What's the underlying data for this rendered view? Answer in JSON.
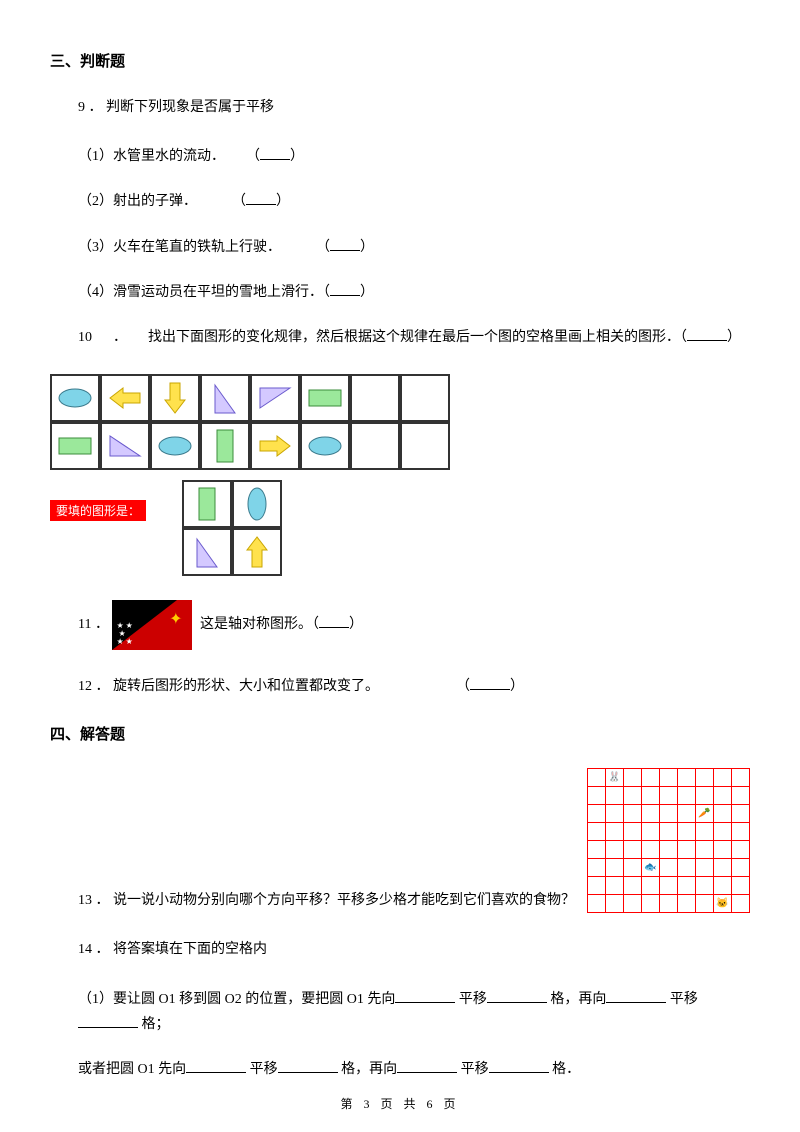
{
  "sections": {
    "s3": {
      "title": "三、判断题"
    },
    "s4": {
      "title": "四、解答题"
    }
  },
  "q9": {
    "number": "9 ．",
    "stem": "判断下列现象是否属于平移",
    "items": {
      "i1": "（1）水管里水的流动．",
      "i2": "（2）射出的子弹．",
      "i3": "（3）火车在笔直的铁轨上行驶．",
      "i4": "（4）滑雪运动员在平坦的雪地上滑行．（",
      "paren_open": "（",
      "paren_close": "）"
    }
  },
  "q10": {
    "number": "10",
    "sep": "．",
    "stem": "找出下面图形的变化规律，然后根据这个规律在最后一个图的空格里画上相关的图形．（",
    "paren_close": "）",
    "answer_label": "要填的图形是："
  },
  "q11": {
    "number": "11 ．",
    "stem": "这是轴对称图形。（",
    "paren_close": "）"
  },
  "q12": {
    "number": "12 ．",
    "stem": "旋转后图形的形状、大小和位置都改变了。",
    "paren_open": "（",
    "paren_close": "）"
  },
  "q13": {
    "number": "13 ．",
    "stem": "说一说小动物分别向哪个方向平移？平移多少格才能吃到它们喜欢的食物？"
  },
  "q14": {
    "number": "14 ．",
    "stem": "将答案填在下面的空格内",
    "sub1_a": "（1）要让圆 O1 移到圆 O2 的位置，要把圆 O1 先向",
    "sub1_b": "平移",
    "sub1_c": "格，再向",
    "sub1_d": "平移",
    "sub1_e": "格；",
    "sub2_a": "或者把圆 O1 先向",
    "sub2_b": "平移",
    "sub2_c": "格，再向",
    "sub2_d": "平移",
    "sub2_e": "格．"
  },
  "footer": {
    "text": "第 3 页 共 6 页"
  },
  "figure": {
    "type": "grid-pattern",
    "cell_border": "#333333",
    "shapes": {
      "ellipse": {
        "fill": "#7fd4e8",
        "stroke": "#3b7a8c"
      },
      "arrow": {
        "fill": "#ffe24d",
        "stroke": "#c9a500"
      },
      "rect": {
        "fill": "#9be89b",
        "stroke": "#3b8c3b"
      },
      "tri": {
        "fill": "#d4c9ff",
        "stroke": "#6a5acd"
      }
    }
  },
  "flag": {
    "bg_red": "#cc0000",
    "triangle": "#000000",
    "bird": "#ffcc00",
    "stars": "#ffffff"
  },
  "red_grid": {
    "border_color": "#ff0000",
    "rows": 8,
    "cols": 9,
    "items": [
      {
        "r": 0,
        "c": 1,
        "glyph": "🐰"
      },
      {
        "r": 2,
        "c": 6,
        "glyph": "🥕"
      },
      {
        "r": 5,
        "c": 3,
        "glyph": "🐟"
      },
      {
        "r": 7,
        "c": 7,
        "glyph": "🐱"
      }
    ]
  }
}
